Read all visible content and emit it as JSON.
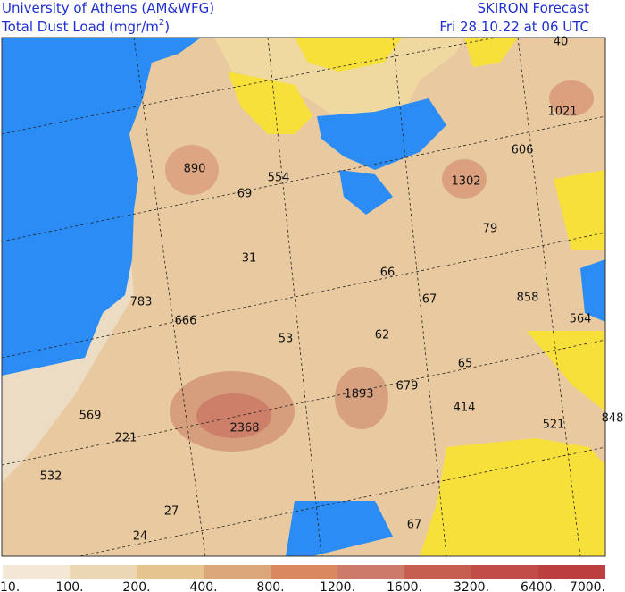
{
  "header": {
    "title_left": "University of Athens (AM&WFG)",
    "subtitle_left": "Total Dust Load (mgr/m",
    "subtitle_sup": "2",
    "subtitle_end": ")",
    "title_right": "SKIRON Forecast",
    "subtitle_right": "Fri 28.10.22 at 06 UTC"
  },
  "map_labels": [
    40,
    1021,
    606,
    890,
    554,
    1302,
    69,
    79,
    31,
    66,
    67,
    858,
    783,
    666,
    564,
    53,
    62,
    65,
    1893,
    679,
    414,
    569,
    2368,
    521,
    848,
    221,
    532,
    27,
    24,
    67
  ],
  "colorbar": {
    "colors": [
      "#f3e8d6",
      "#ecd7b4",
      "#e6c48f",
      "#dba67a",
      "#d9885f",
      "#cc7b6b",
      "#c55f50",
      "#c24d48",
      "#bb3f3f"
    ],
    "labels": [
      "10.",
      "100.",
      "200.",
      "400.",
      "800.",
      "1200.",
      "1600.",
      "3200.",
      "6400.",
      "7000."
    ]
  }
}
